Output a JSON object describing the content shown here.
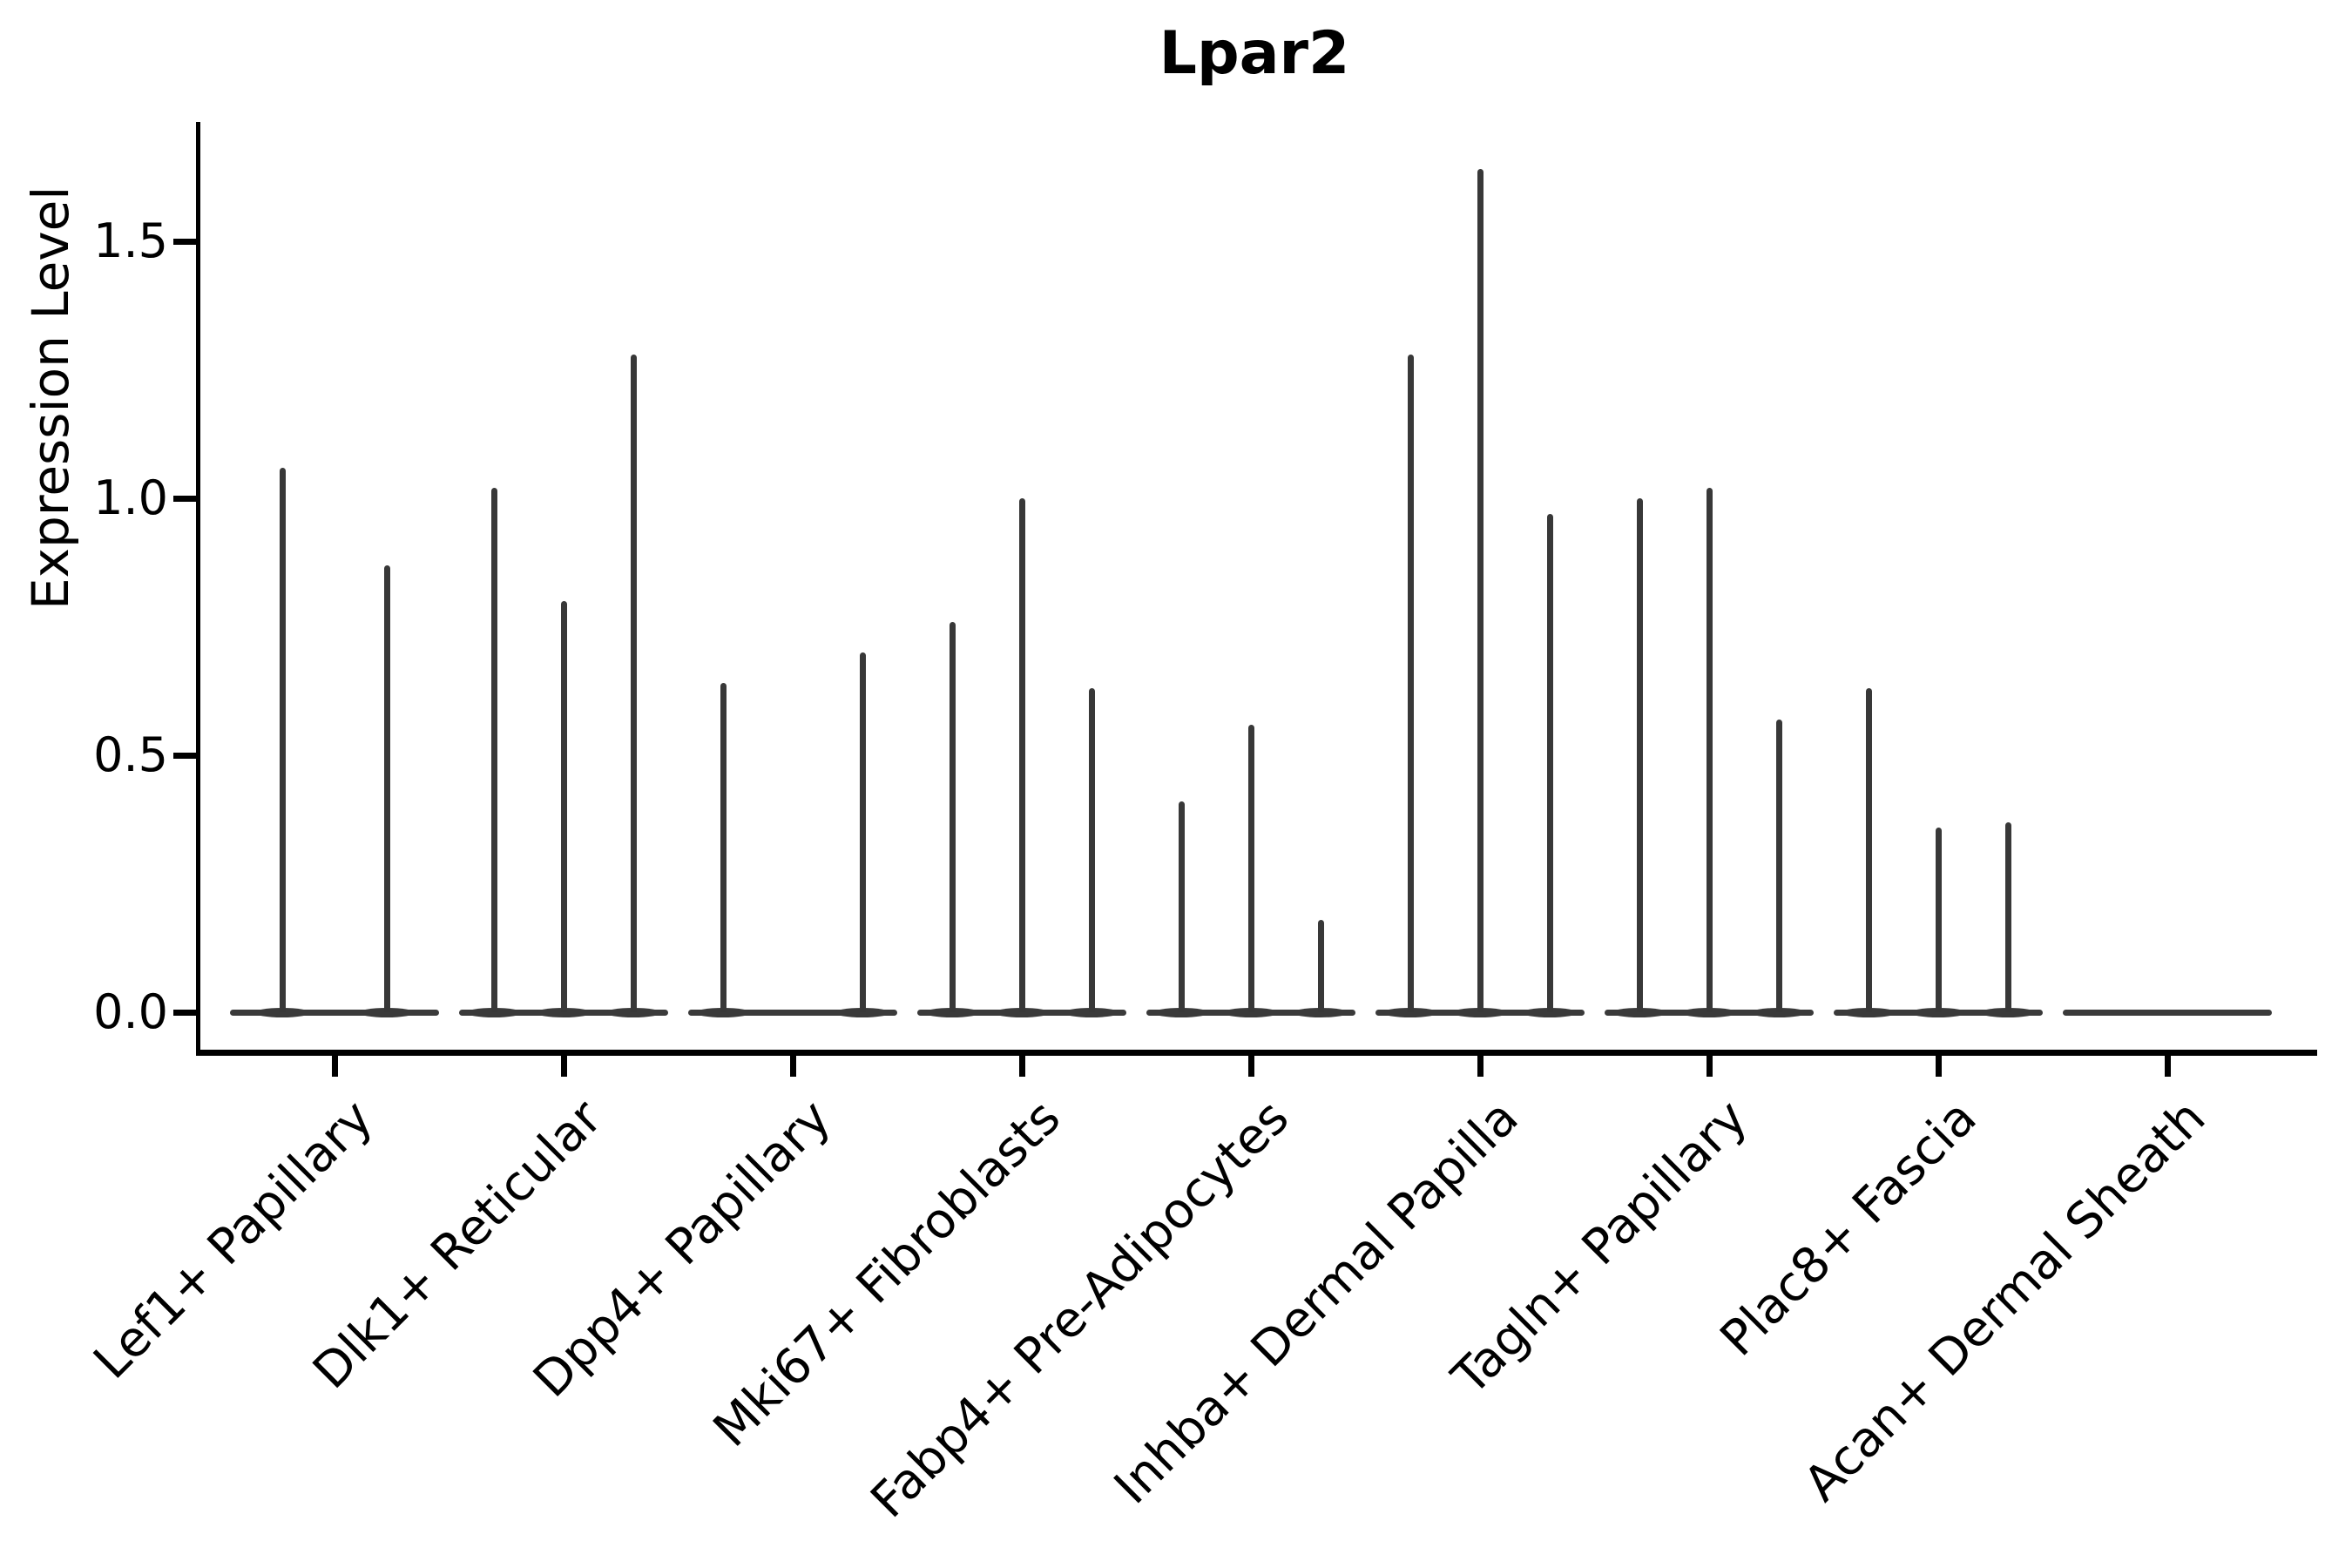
{
  "chart_data": {
    "type": "violin",
    "title": "Lpar2",
    "ylabel": "Expression Level",
    "xlabel": "",
    "grid": false,
    "legend": "none",
    "background_color": "#ffffff",
    "axis_color": "#000000",
    "violin_color": "#3a3a3a",
    "ylim": [
      -0.08,
      1.73
    ],
    "yticks": [
      {
        "value": 0.0,
        "label": "0.0"
      },
      {
        "value": 0.5,
        "label": "0.5"
      },
      {
        "value": 1.0,
        "label": "1.0"
      },
      {
        "value": 1.5,
        "label": "1.5"
      }
    ],
    "note": "Each category shows 2-3 extremely thin violins: a flat dense base at expression 0 with a narrow spike up to the listed maximum expression value; 0 means a flat violin with no spike.",
    "categories": [
      {
        "label": "Lef1+ Papillary",
        "violin_maxima": [
          1.06,
          0.87
        ]
      },
      {
        "label": "Dlk1+ Reticular",
        "violin_maxima": [
          1.02,
          0.8,
          1.28
        ]
      },
      {
        "label": "Dpp4+ Papillary",
        "violin_maxima": [
          0.64,
          0.0,
          0.7
        ]
      },
      {
        "label": "Mki67+ Fibroblasts",
        "violin_maxima": [
          0.76,
          1.0,
          0.63
        ]
      },
      {
        "label": "Fabp4+ Pre-Adipocytes",
        "violin_maxima": [
          0.41,
          0.56,
          0.18
        ]
      },
      {
        "label": "Inhba+ Dermal Papilla",
        "violin_maxima": [
          1.28,
          1.64,
          0.97
        ]
      },
      {
        "label": "Tagln+ Papillary",
        "violin_maxima": [
          1.0,
          1.02,
          0.57
        ]
      },
      {
        "label": "Plac8+ Fascia",
        "violin_maxima": [
          0.63,
          0.36,
          0.37
        ]
      },
      {
        "label": "Acan+ Dermal Sheath",
        "violin_maxima": [
          0.0,
          0.0,
          0.0
        ]
      }
    ]
  }
}
